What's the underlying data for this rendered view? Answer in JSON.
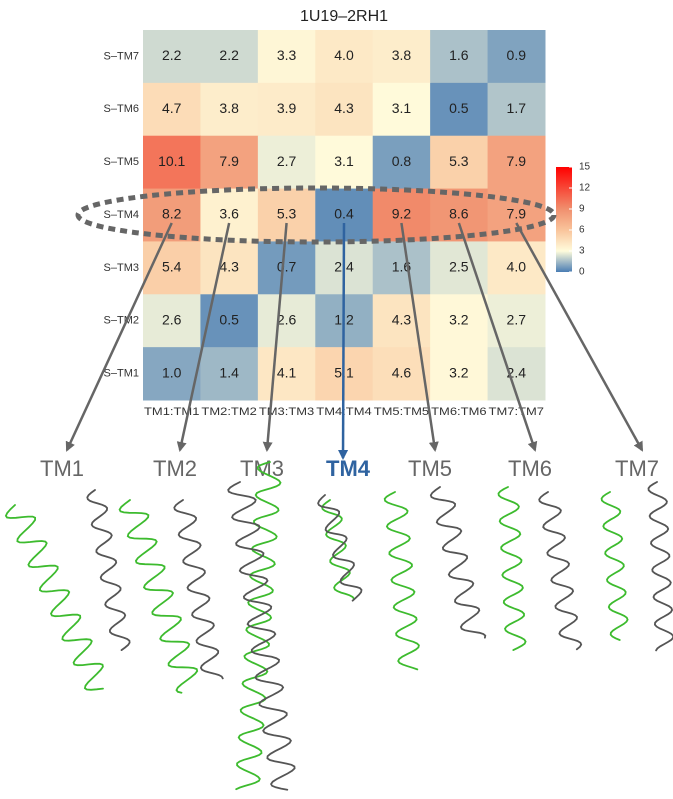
{
  "chart_data": {
    "type": "heatmap",
    "title": "1U19–2RH1",
    "x": [
      "TM1:TM1",
      "TM2:TM2",
      "TM3:TM3",
      "TM4:TM4",
      "TM5:TM5",
      "TM6:TM6",
      "TM7:TM7"
    ],
    "y": [
      "S–TM7",
      "S–TM6",
      "S–TM5",
      "S–TM4",
      "S–TM3",
      "S–TM2",
      "S–TM1"
    ],
    "values": [
      [
        2.2,
        2.2,
        3.3,
        4,
        3.8,
        1.6,
        0.9
      ],
      [
        4.7,
        3.8,
        3.9,
        4.3,
        3.1,
        0.5,
        1.7
      ],
      [
        10.1,
        7.9,
        2.7,
        3.1,
        0.8,
        5.3,
        7.9
      ],
      [
        8.2,
        3.6,
        5.3,
        0.4,
        9.2,
        8.6,
        7.9
      ],
      [
        5.4,
        4.3,
        0.7,
        2.4,
        1.6,
        2.5,
        4
      ],
      [
        2.6,
        0.5,
        2.6,
        1.2,
        4.3,
        3.2,
        2.7
      ],
      [
        1,
        1.4,
        4.1,
        5.1,
        4.6,
        3.2,
        2.4
      ]
    ],
    "value_labels": [
      [
        "2.2",
        "2.2",
        "3.3",
        "4.0",
        "3.8",
        "1.6",
        "0.9"
      ],
      [
        "4.7",
        "3.8",
        "3.9",
        "4.3",
        "3.1",
        "0.5",
        "1.7"
      ],
      [
        "10.1",
        "7.9",
        "2.7",
        "3.1",
        "0.8",
        "5.3",
        "7.9"
      ],
      [
        "8.2",
        "3.6",
        "5.3",
        "0.4",
        "9.2",
        "8.6",
        "7.9"
      ],
      [
        "5.4",
        "4.3",
        "0.7",
        "2.4",
        "1.6",
        "2.5",
        "4.0"
      ],
      [
        "2.6",
        "0.5",
        "2.6",
        "1.2",
        "4.3",
        "3.2",
        "2.7"
      ],
      [
        "1.0",
        "1.4",
        "4.1",
        "5.1",
        "4.6",
        "3.2",
        "2.4"
      ]
    ],
    "clim": [
      0,
      15
    ],
    "cticks": [
      0,
      3,
      6,
      9,
      12,
      15
    ],
    "colorscale": [
      {
        "value": 0,
        "color": "#4a7db3"
      },
      {
        "value": 3,
        "color": "#fffcdc"
      },
      {
        "value": 6,
        "color": "#f9c49b"
      },
      {
        "value": 9,
        "color": "#f08f6e"
      },
      {
        "value": 15,
        "color": "#ff0000"
      }
    ],
    "highlight_row": 3,
    "helix_labels": [
      "TM1",
      "TM2",
      "TM3",
      "TM4",
      "TM5",
      "TM6",
      "TM7"
    ],
    "highlight_helix": 3
  }
}
